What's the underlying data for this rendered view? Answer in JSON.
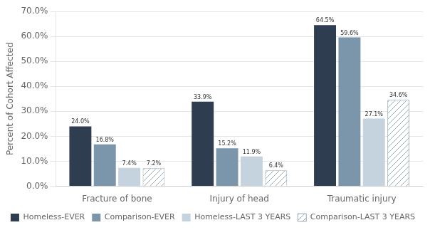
{
  "chart_data": {
    "type": "bar",
    "categories": [
      "Fracture of bone",
      "Injury of head",
      "Traumatic injury"
    ],
    "series": [
      {
        "name": "Homeless-EVER",
        "color": "#2e3d4f",
        "values": [
          24.0,
          33.9,
          64.5
        ],
        "value_labels": [
          "24.0%",
          "33.9%",
          "64.5%"
        ]
      },
      {
        "name": "Comparison-EVER",
        "color": "#7b96ab",
        "values": [
          16.8,
          15.2,
          59.6
        ],
        "value_labels": [
          "16.8%",
          "15.2%",
          "59.6%"
        ]
      },
      {
        "name": "Homeless-LAST 3 YEARS",
        "color": "#c5d3de",
        "values": [
          7.4,
          11.9,
          27.1
        ],
        "value_labels": [
          "7.4%",
          "11.9%",
          "27.1%"
        ]
      },
      {
        "name": "Comparison-LAST 3 YEARS",
        "color": "#9aabb8",
        "marker": "hatch",
        "values": [
          7.2,
          6.4,
          34.6
        ],
        "value_labels": [
          "7.2%",
          "6.4%",
          "34.6%"
        ]
      }
    ],
    "ylabel": "Percent of Cohort Affected",
    "ylim": [
      0,
      70
    ],
    "yticks": [
      {
        "value": 0,
        "label": "0.0%"
      },
      {
        "value": 10,
        "label": "10.0%"
      },
      {
        "value": 20,
        "label": "20.0%"
      },
      {
        "value": 30,
        "label": "30.0%"
      },
      {
        "value": 40,
        "label": "40.0%"
      },
      {
        "value": 50,
        "label": "50.0%"
      },
      {
        "value": 60,
        "label": "60.0%"
      },
      {
        "value": 70,
        "label": "70.0%"
      }
    ],
    "grid": true,
    "legend": "bottom",
    "data_labels": true
  }
}
